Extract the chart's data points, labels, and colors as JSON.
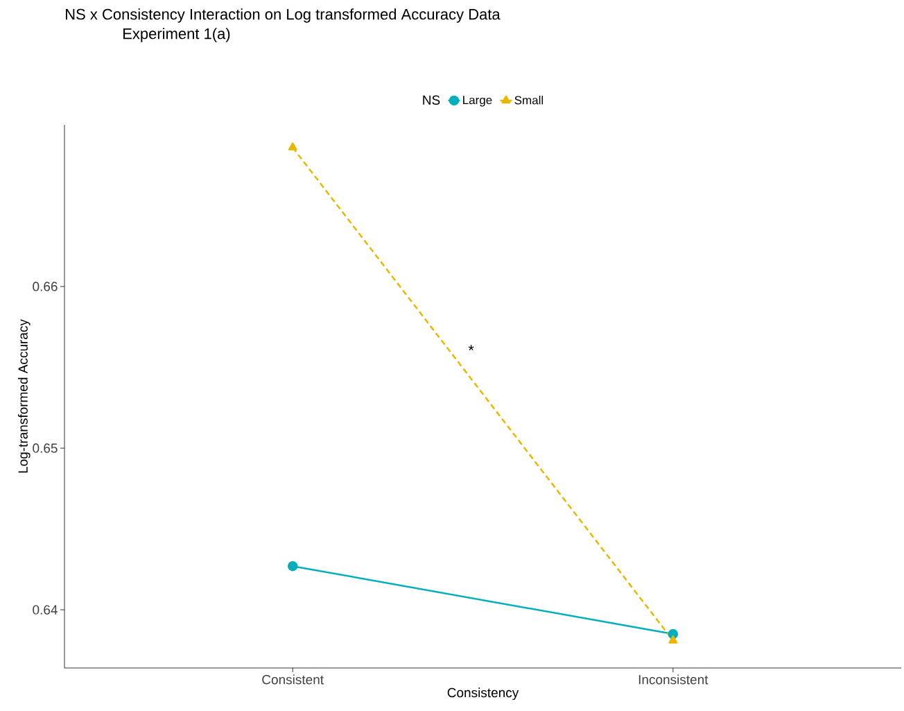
{
  "chart_data": {
    "type": "line",
    "title": "NS x Consistency Interaction on Log transformed Accuracy Data",
    "subtitle": "Experiment 1(a)",
    "xlabel": "Consistency",
    "ylabel": "Log-transformed Accuracy",
    "legend_title": "NS",
    "legend": "top",
    "categories": [
      "Consistent",
      "Inconsistent"
    ],
    "series": [
      {
        "name": "Large",
        "color": "#00afbb",
        "marker": "circle",
        "line_style": "solid",
        "values": [
          0.6427,
          0.6385
        ]
      },
      {
        "name": "Small",
        "color": "#e7b800",
        "marker": "triangle",
        "line_style": "dashed",
        "values": [
          0.6686,
          0.6381
        ]
      }
    ],
    "ylim": [
      0.6364,
      0.67
    ],
    "yticks": [
      0.64,
      0.65,
      0.66
    ],
    "grid": false,
    "annotations": [
      "*"
    ]
  }
}
